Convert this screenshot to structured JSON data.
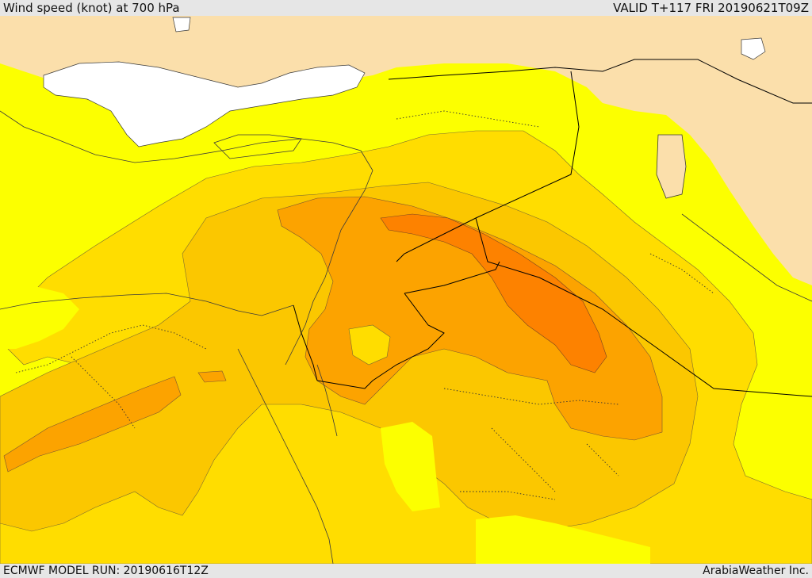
{
  "header": {
    "title": "Wind speed (knot) at 700 hPa",
    "valid": "VALID T+117 FRI 20190621T09Z"
  },
  "footer": {
    "model_run": "ECMWF MODEL RUN: 20190616T12Z",
    "credit": "ArabiaWeather Inc."
  },
  "colors": {
    "land_calm": "#fbdfab",
    "water": "#ffffff",
    "band_1": "#fcff00",
    "band_2": "#ffdd00",
    "band_3": "#fbc700",
    "band_4": "#fca300",
    "band_5": "#fd8200",
    "coast": "#3a3a3a",
    "border": "#000000"
  }
}
